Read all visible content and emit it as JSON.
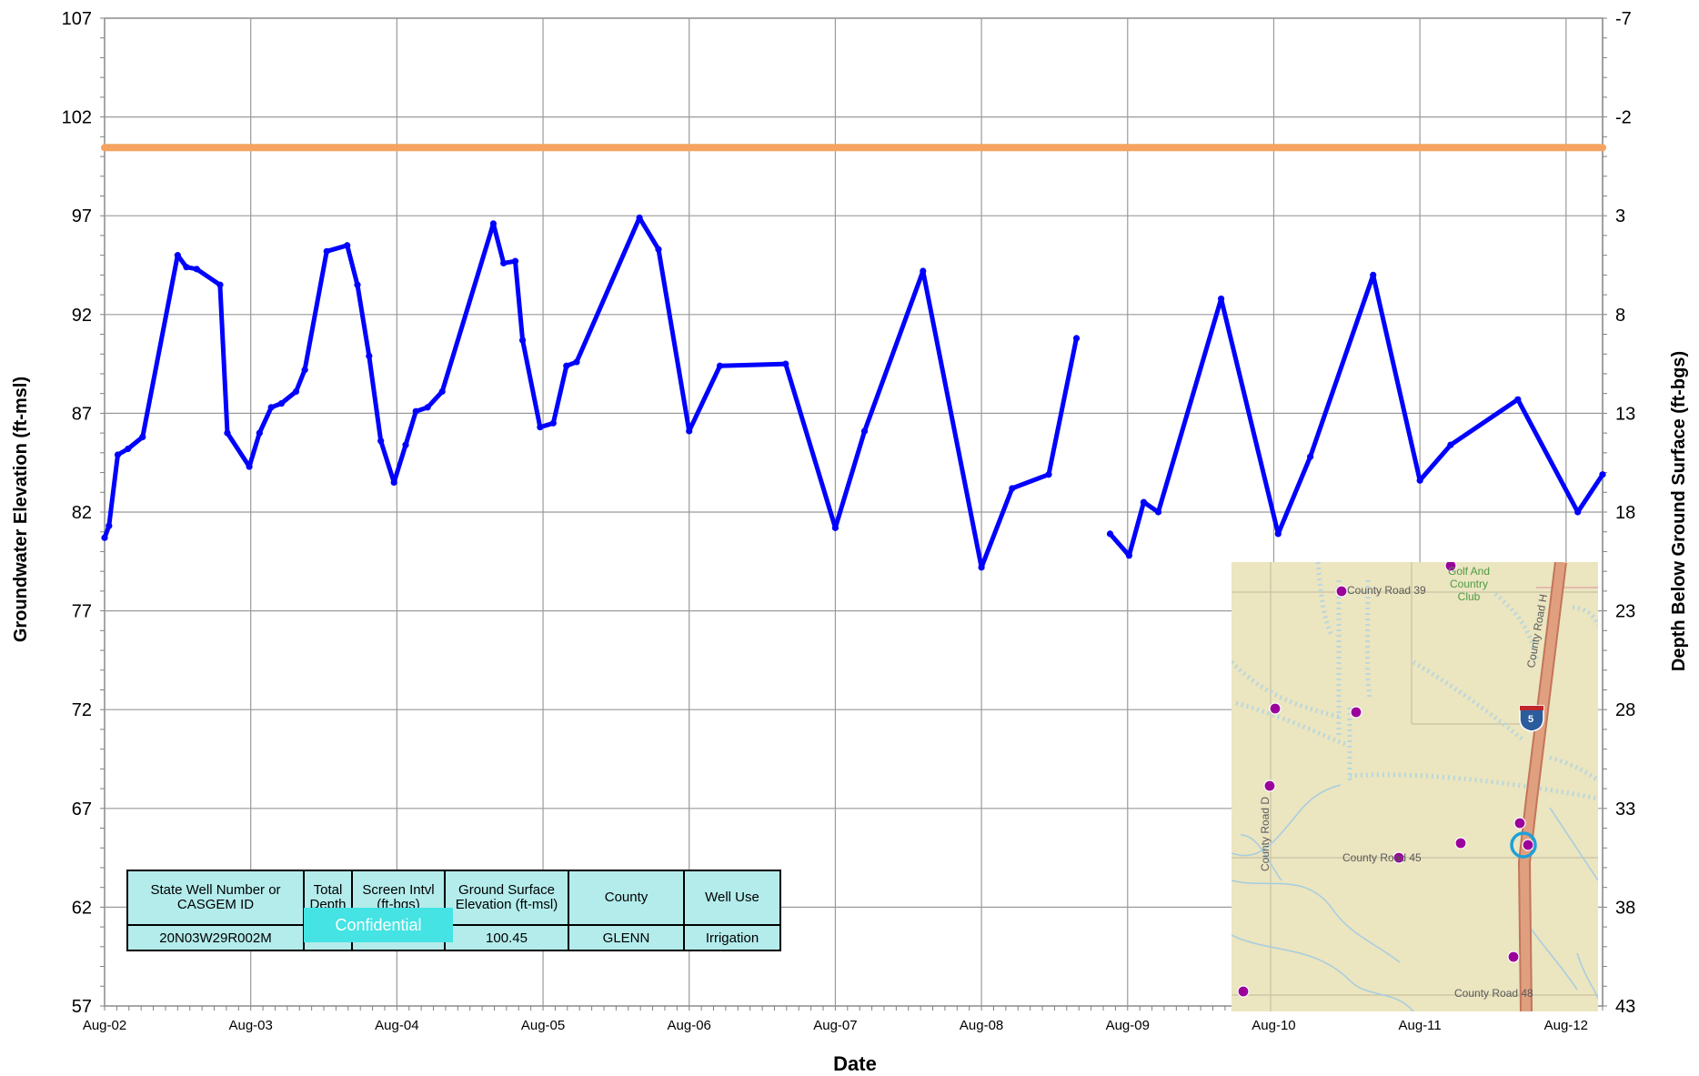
{
  "chart_data": {
    "type": "line",
    "xlabel": "Date",
    "ylabel": "Groundwater Elevation (ft-msl)",
    "y2label": "Depth Below Ground Surface (ft-bgs)",
    "x_ticks": [
      "Aug-02",
      "Aug-03",
      "Aug-04",
      "Aug-05",
      "Aug-06",
      "Aug-07",
      "Aug-08",
      "Aug-09",
      "Aug-10",
      "Aug-11",
      "Aug-12"
    ],
    "x_range": [
      2002.0,
      2012.25
    ],
    "ylim": [
      57,
      107
    ],
    "y_ticks": [
      107,
      102,
      97,
      92,
      87,
      82,
      77,
      72,
      67,
      62,
      57
    ],
    "y2_ticks": [
      -7,
      -2,
      3,
      8,
      13,
      18,
      23,
      28,
      33,
      38,
      43
    ],
    "grid": true,
    "series": [
      {
        "name": "",
        "color": "#0000ff",
        "segments": [
          [
            [
              2002.0,
              80.7
            ],
            [
              2002.03,
              81.3
            ],
            [
              2002.09,
              84.9
            ],
            [
              2002.16,
              85.2
            ],
            [
              2002.26,
              85.8
            ],
            [
              2002.5,
              95.0
            ],
            [
              2002.56,
              94.4
            ],
            [
              2002.63,
              94.3
            ],
            [
              2002.79,
              93.5
            ],
            [
              2002.84,
              86.0
            ],
            [
              2002.99,
              84.3
            ],
            [
              2003.06,
              86.0
            ],
            [
              2003.14,
              87.3
            ],
            [
              2003.21,
              87.5
            ],
            [
              2003.31,
              88.1
            ],
            [
              2003.37,
              89.2
            ],
            [
              2003.52,
              95.2
            ],
            [
              2003.66,
              95.5
            ],
            [
              2003.73,
              93.5
            ],
            [
              2003.81,
              89.9
            ],
            [
              2003.89,
              85.6
            ],
            [
              2003.98,
              83.5
            ],
            [
              2004.06,
              85.4
            ],
            [
              2004.13,
              87.1
            ],
            [
              2004.21,
              87.3
            ],
            [
              2004.31,
              88.1
            ],
            [
              2004.66,
              96.6
            ],
            [
              2004.73,
              94.6
            ],
            [
              2004.81,
              94.7
            ],
            [
              2004.86,
              90.7
            ],
            [
              2004.98,
              86.3
            ],
            [
              2005.07,
              86.5
            ],
            [
              2005.16,
              89.4
            ],
            [
              2005.23,
              89.6
            ],
            [
              2005.66,
              96.9
            ],
            [
              2005.79,
              95.3
            ],
            [
              2006.0,
              86.1
            ],
            [
              2006.21,
              89.4
            ],
            [
              2006.66,
              89.5
            ],
            [
              2007.0,
              81.2
            ],
            [
              2007.2,
              86.1
            ],
            [
              2007.6,
              94.2
            ],
            [
              2008.0,
              79.2
            ],
            [
              2008.21,
              83.2
            ],
            [
              2008.46,
              83.9
            ],
            [
              2008.65,
              90.8
            ]
          ],
          [
            [
              2008.88,
              80.9
            ],
            [
              2009.01,
              79.8
            ],
            [
              2009.11,
              82.5
            ],
            [
              2009.21,
              82.0
            ],
            [
              2009.64,
              92.8
            ],
            [
              2010.03,
              80.9
            ],
            [
              2010.25,
              84.8
            ],
            [
              2010.68,
              94.0
            ],
            [
              2011.0,
              83.6
            ],
            [
              2011.21,
              85.4
            ],
            [
              2011.67,
              87.7
            ],
            [
              2012.08,
              82.0
            ],
            [
              2012.25,
              83.9
            ]
          ]
        ]
      },
      {
        "name": "",
        "color": "#f4a460",
        "segments": [
          [
            [
              2002.0,
              100.45
            ],
            [
              2012.25,
              100.45
            ]
          ]
        ]
      }
    ]
  },
  "table": {
    "headers": [
      "State Well Number or CASGEM ID",
      "Total Depth",
      "Screen Intvl (ft-bgs)",
      "Ground Surface Elevation (ft-msl)",
      "County",
      "Well Use"
    ],
    "row": [
      "20N03W29R002M",
      "",
      "",
      "100.45",
      "GLENN",
      "Irrigation"
    ],
    "confidential_label": "Confidential"
  },
  "map": {
    "labels": {
      "road39": "County Road 39",
      "golf": "Golf And Country Club",
      "roadH": "County Road H",
      "roadD": "County Road D",
      "road45": "County Road 45",
      "road48": "County Road 48",
      "interstate": "5"
    },
    "well_color": "#9b009b",
    "selected_color": "#1ea0d8"
  }
}
